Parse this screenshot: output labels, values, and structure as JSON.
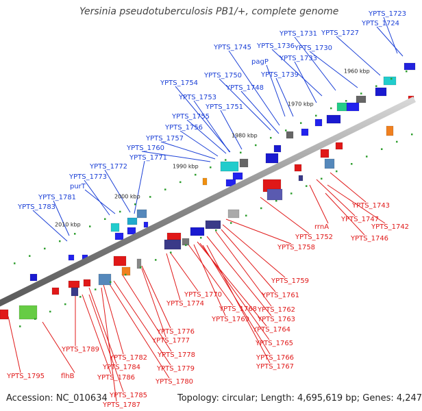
{
  "title": "Yersinia pseudotuberculosis PB1/+, complete genome",
  "footer": {
    "accession": "Accession: NC_010634",
    "summary": "Topology: circular; Length: 4,695,619 bp; Genes: 4,247"
  },
  "colors": {
    "top_labels": "#1a3fd6",
    "bottom_labels": "#e01818",
    "backbone": "#808080",
    "kbp_text": "#222222",
    "dots": "#2e9e2e"
  },
  "kbp_ticks": [
    "1960 kbp",
    "1970 kbp",
    "1980 kbp",
    "1990 kbp",
    "2000 kbp",
    "2010 kbp"
  ],
  "top_labels": [
    "YPTS_1723",
    "YPTS_1724",
    "YPTS_1727",
    "YPTS_1731",
    "YPTS_1730",
    "YPTS_1736",
    "YPTS_1733",
    "YPTS_1745",
    "pagP",
    "YPTS_1739",
    "YPTS_1750",
    "YPTS_1754",
    "YPTS_1748",
    "YPTS_1753",
    "YPTS_1751",
    "YPTS_1755",
    "YPTS_1756",
    "YPTS_1757",
    "YPTS_1760",
    "YPTS_1771",
    "YPTS_1772",
    "YPTS_1773",
    "purT",
    "YPTS_1781",
    "YPTS_1783"
  ],
  "bottom_labels": [
    "YPTS_1743",
    "YPTS_1742",
    "YPTS_1747",
    "rrnA",
    "YPTS_1746",
    "YPTS_1752",
    "YPTS_1758",
    "YPTS_1759",
    "YPTS_1761",
    "YPTS_1762",
    "YPTS_1770",
    "YPTS_1768",
    "YPTS_1763",
    "YPTS_1774",
    "YPTS_1769",
    "YPTS_1764",
    "YPTS_1765",
    "YPTS_1776",
    "YPTS_1777",
    "YPTS_1766",
    "YPTS_1767",
    "YPTS_1778",
    "YPTS_1789",
    "YPTS_1782",
    "YPTS_1779",
    "YPTS_1784",
    "YPTS_1786",
    "YPTS_1780",
    "YPTS_1795",
    "flhB",
    "YPTS_1785",
    "YPTS_1787"
  ]
}
